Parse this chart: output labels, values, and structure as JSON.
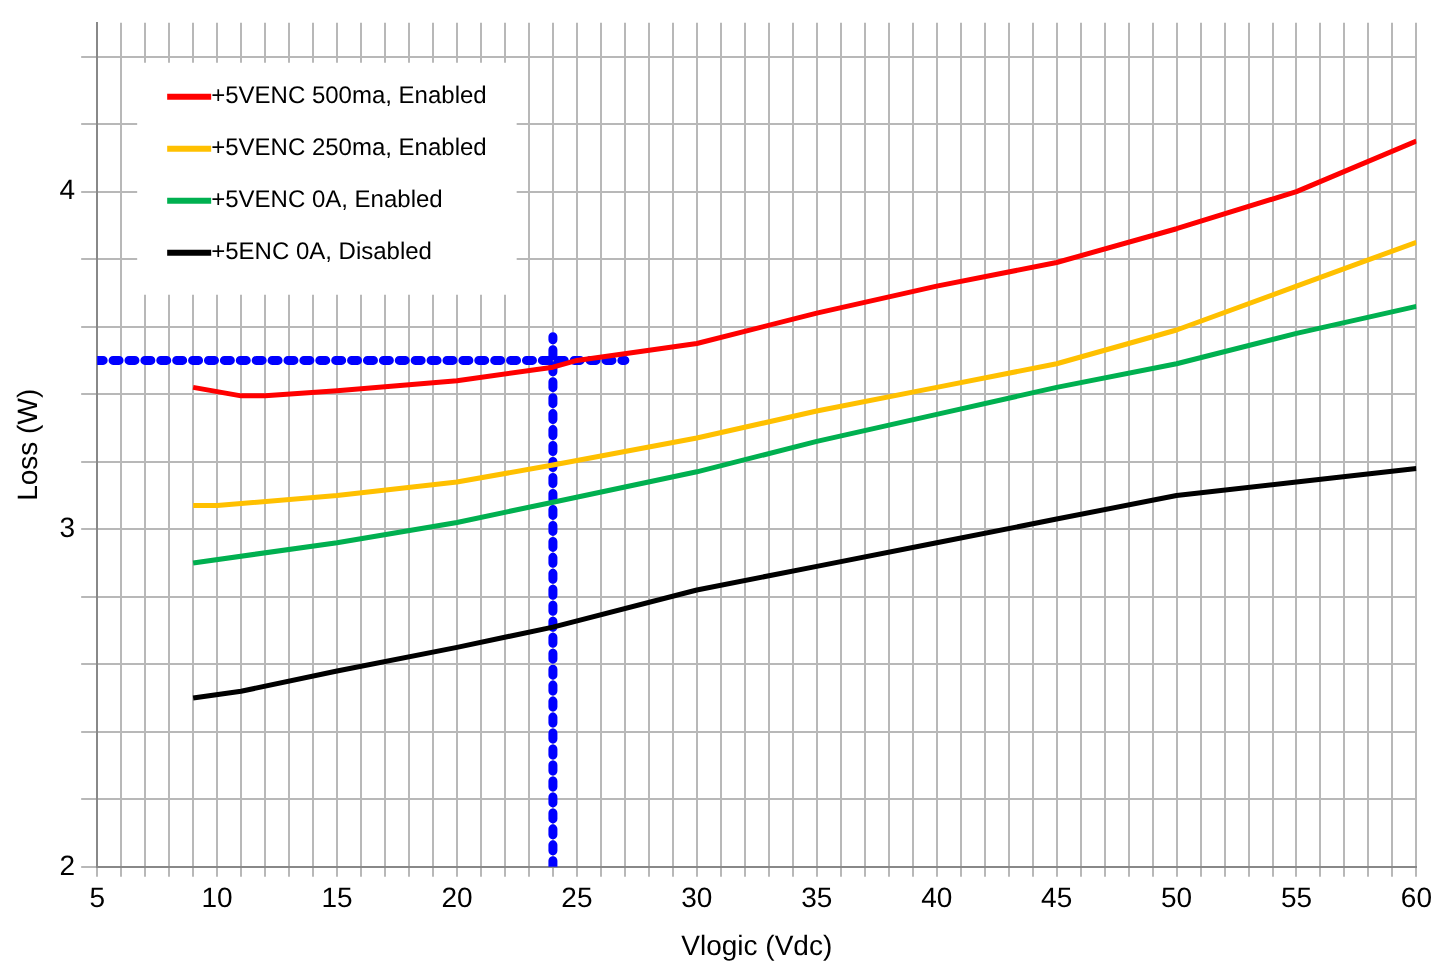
{
  "chart_data": {
    "type": "line",
    "xlabel": "Vlogic (Vdc)",
    "ylabel": "Loss (W)",
    "xlim": [
      5,
      60
    ],
    "ylim": [
      2,
      4.5
    ],
    "xticks": [
      5,
      {
        "value": 6,
        "label": null
      },
      {
        "value": 7,
        "label": null
      },
      {
        "value": 8,
        "label": null
      },
      {
        "value": 9,
        "label": null
      },
      10,
      {
        "value": 11,
        "label": null
      },
      {
        "value": 12,
        "label": null
      },
      {
        "value": 13,
        "label": null
      },
      {
        "value": 14,
        "label": null
      },
      15,
      {
        "value": 16,
        "label": null
      },
      {
        "value": 17,
        "label": null
      },
      {
        "value": 18,
        "label": null
      },
      {
        "value": 19,
        "label": null
      },
      20,
      {
        "value": 21,
        "label": null
      },
      {
        "value": 22,
        "label": null
      },
      {
        "value": 23,
        "label": null
      },
      {
        "value": 24,
        "label": null
      },
      25,
      {
        "value": 26,
        "label": null
      },
      {
        "value": 27,
        "label": null
      },
      {
        "value": 28,
        "label": null
      },
      {
        "value": 29,
        "label": null
      },
      30,
      {
        "value": 31,
        "label": null
      },
      {
        "value": 32,
        "label": null
      },
      {
        "value": 33,
        "label": null
      },
      {
        "value": 34,
        "label": null
      },
      35,
      {
        "value": 36,
        "label": null
      },
      {
        "value": 37,
        "label": null
      },
      {
        "value": 38,
        "label": null
      },
      {
        "value": 39,
        "label": null
      },
      40,
      {
        "value": 41,
        "label": null
      },
      {
        "value": 42,
        "label": null
      },
      {
        "value": 43,
        "label": null
      },
      {
        "value": 44,
        "label": null
      },
      45,
      {
        "value": 46,
        "label": null
      },
      {
        "value": 47,
        "label": null
      },
      {
        "value": 48,
        "label": null
      },
      {
        "value": 49,
        "label": null
      },
      50,
      {
        "value": 51,
        "label": null
      },
      {
        "value": 52,
        "label": null
      },
      {
        "value": 53,
        "label": null
      },
      {
        "value": 54,
        "label": null
      },
      55,
      {
        "value": 56,
        "label": null
      },
      {
        "value": 57,
        "label": null
      },
      {
        "value": 58,
        "label": null
      },
      {
        "value": 59,
        "label": null
      },
      60
    ],
    "yticks": [
      2,
      {
        "value": 2.2,
        "label": null
      },
      {
        "value": 2.4,
        "label": null
      },
      {
        "value": 2.6,
        "label": null
      },
      {
        "value": 2.8,
        "label": null
      },
      3,
      {
        "value": 3.2,
        "label": null
      },
      {
        "value": 3.4,
        "label": null
      },
      {
        "value": 3.6,
        "label": null
      },
      {
        "value": 3.8,
        "label": null
      },
      4,
      {
        "value": 4.2,
        "label": null
      },
      {
        "value": 4.4,
        "label": null
      }
    ],
    "grid": true,
    "legend": "top left",
    "marker": "none",
    "line_style": "solid",
    "series": [
      {
        "name": "+5VENC 500ma, Enabled",
        "color": "#ff0000",
        "x": [
          9,
          11,
          12,
          15,
          20,
          24,
          25,
          30,
          35,
          40,
          45,
          50,
          55,
          60
        ],
        "values": [
          3.42,
          3.395,
          3.395,
          3.41,
          3.44,
          3.48,
          3.5,
          3.55,
          3.64,
          3.72,
          3.79,
          3.89,
          4.0,
          4.15
        ]
      },
      {
        "name": "+5VENC 250ma, Enabled",
        "color": "#ffc000",
        "x": [
          9,
          10,
          15,
          20,
          24,
          30,
          35,
          40,
          45,
          50,
          55,
          60
        ],
        "values": [
          3.07,
          3.07,
          3.1,
          3.14,
          3.19,
          3.27,
          3.35,
          3.42,
          3.49,
          3.59,
          3.72,
          3.85
        ]
      },
      {
        "name": "+5VENC 0A, Enabled",
        "color": "#00b050",
        "x": [
          9,
          15,
          20,
          24,
          30,
          35,
          40,
          45,
          50,
          55,
          60
        ],
        "values": [
          2.9,
          2.96,
          3.02,
          3.08,
          3.17,
          3.26,
          3.34,
          3.42,
          3.49,
          3.58,
          3.66
        ]
      },
      {
        "name": "+5ENC 0A, Disabled",
        "color": "#000000",
        "x": [
          9,
          11,
          15,
          20,
          24,
          30,
          35,
          40,
          45,
          50,
          55,
          60
        ],
        "values": [
          2.5,
          2.52,
          2.58,
          2.65,
          2.71,
          2.82,
          2.89,
          2.96,
          3.03,
          3.1,
          3.14,
          3.18
        ]
      },
      {
        "color": "#0000ff",
        "line_style": "dotted",
        "x": [
          5,
          27
        ],
        "values": [
          3.5,
          3.5
        ]
      },
      {
        "color": "#0000ff",
        "line_style": "dotted",
        "x": [
          24,
          24
        ],
        "values": [
          2,
          3.57
        ]
      }
    ]
  }
}
